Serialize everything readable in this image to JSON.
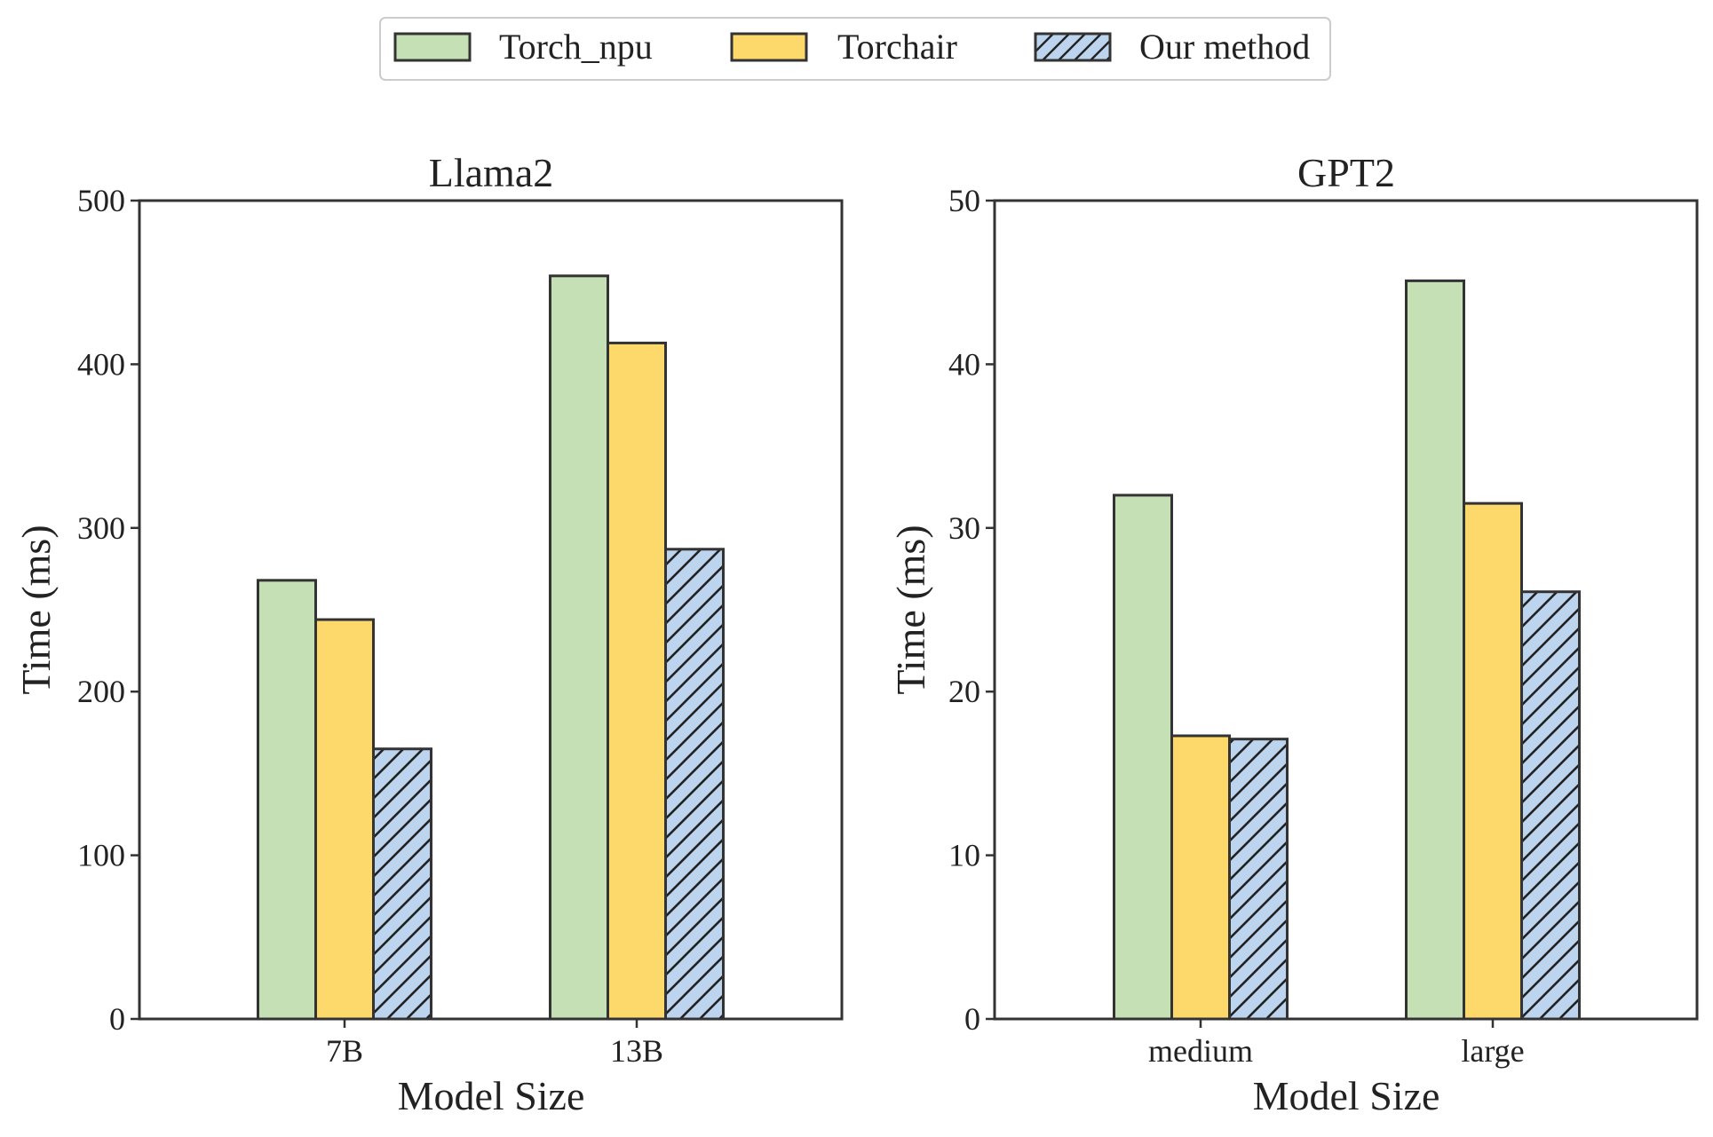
{
  "legend": {
    "entries": [
      {
        "label": "Torch_npu",
        "color": "#c5e0b4",
        "hatch": false
      },
      {
        "label": "Torchair",
        "color": "#fcd96a",
        "hatch": false
      },
      {
        "label": "Our method",
        "color": "#bdd4ee",
        "hatch": true
      }
    ],
    "placement": "top-center"
  },
  "chart_data": [
    {
      "type": "bar",
      "title": "Llama2",
      "xlabel": "Model Size",
      "ylabel": "Time (ms)",
      "categories": [
        "7B",
        "13B"
      ],
      "ylim": [
        0,
        500
      ],
      "yticks": [
        "0",
        "100",
        "200",
        "300",
        "400",
        "500"
      ],
      "grid": false,
      "series": [
        {
          "name": "Torch_npu",
          "values": [
            268,
            454
          ]
        },
        {
          "name": "Torchair",
          "values": [
            244,
            413
          ]
        },
        {
          "name": "Our method",
          "values": [
            165,
            287
          ]
        }
      ]
    },
    {
      "type": "bar",
      "title": "GPT2",
      "xlabel": "Model Size",
      "ylabel": "Time (ms)",
      "categories": [
        "medium",
        "large"
      ],
      "ylim": [
        0,
        50
      ],
      "yticks": [
        "0",
        "10",
        "20",
        "30",
        "40",
        "50"
      ],
      "grid": false,
      "series": [
        {
          "name": "Torch_npu",
          "values": [
            32.0,
            45.1
          ]
        },
        {
          "name": "Torchair",
          "values": [
            17.3,
            31.5
          ]
        },
        {
          "name": "Our method",
          "values": [
            17.1,
            26.1
          ]
        }
      ]
    }
  ]
}
